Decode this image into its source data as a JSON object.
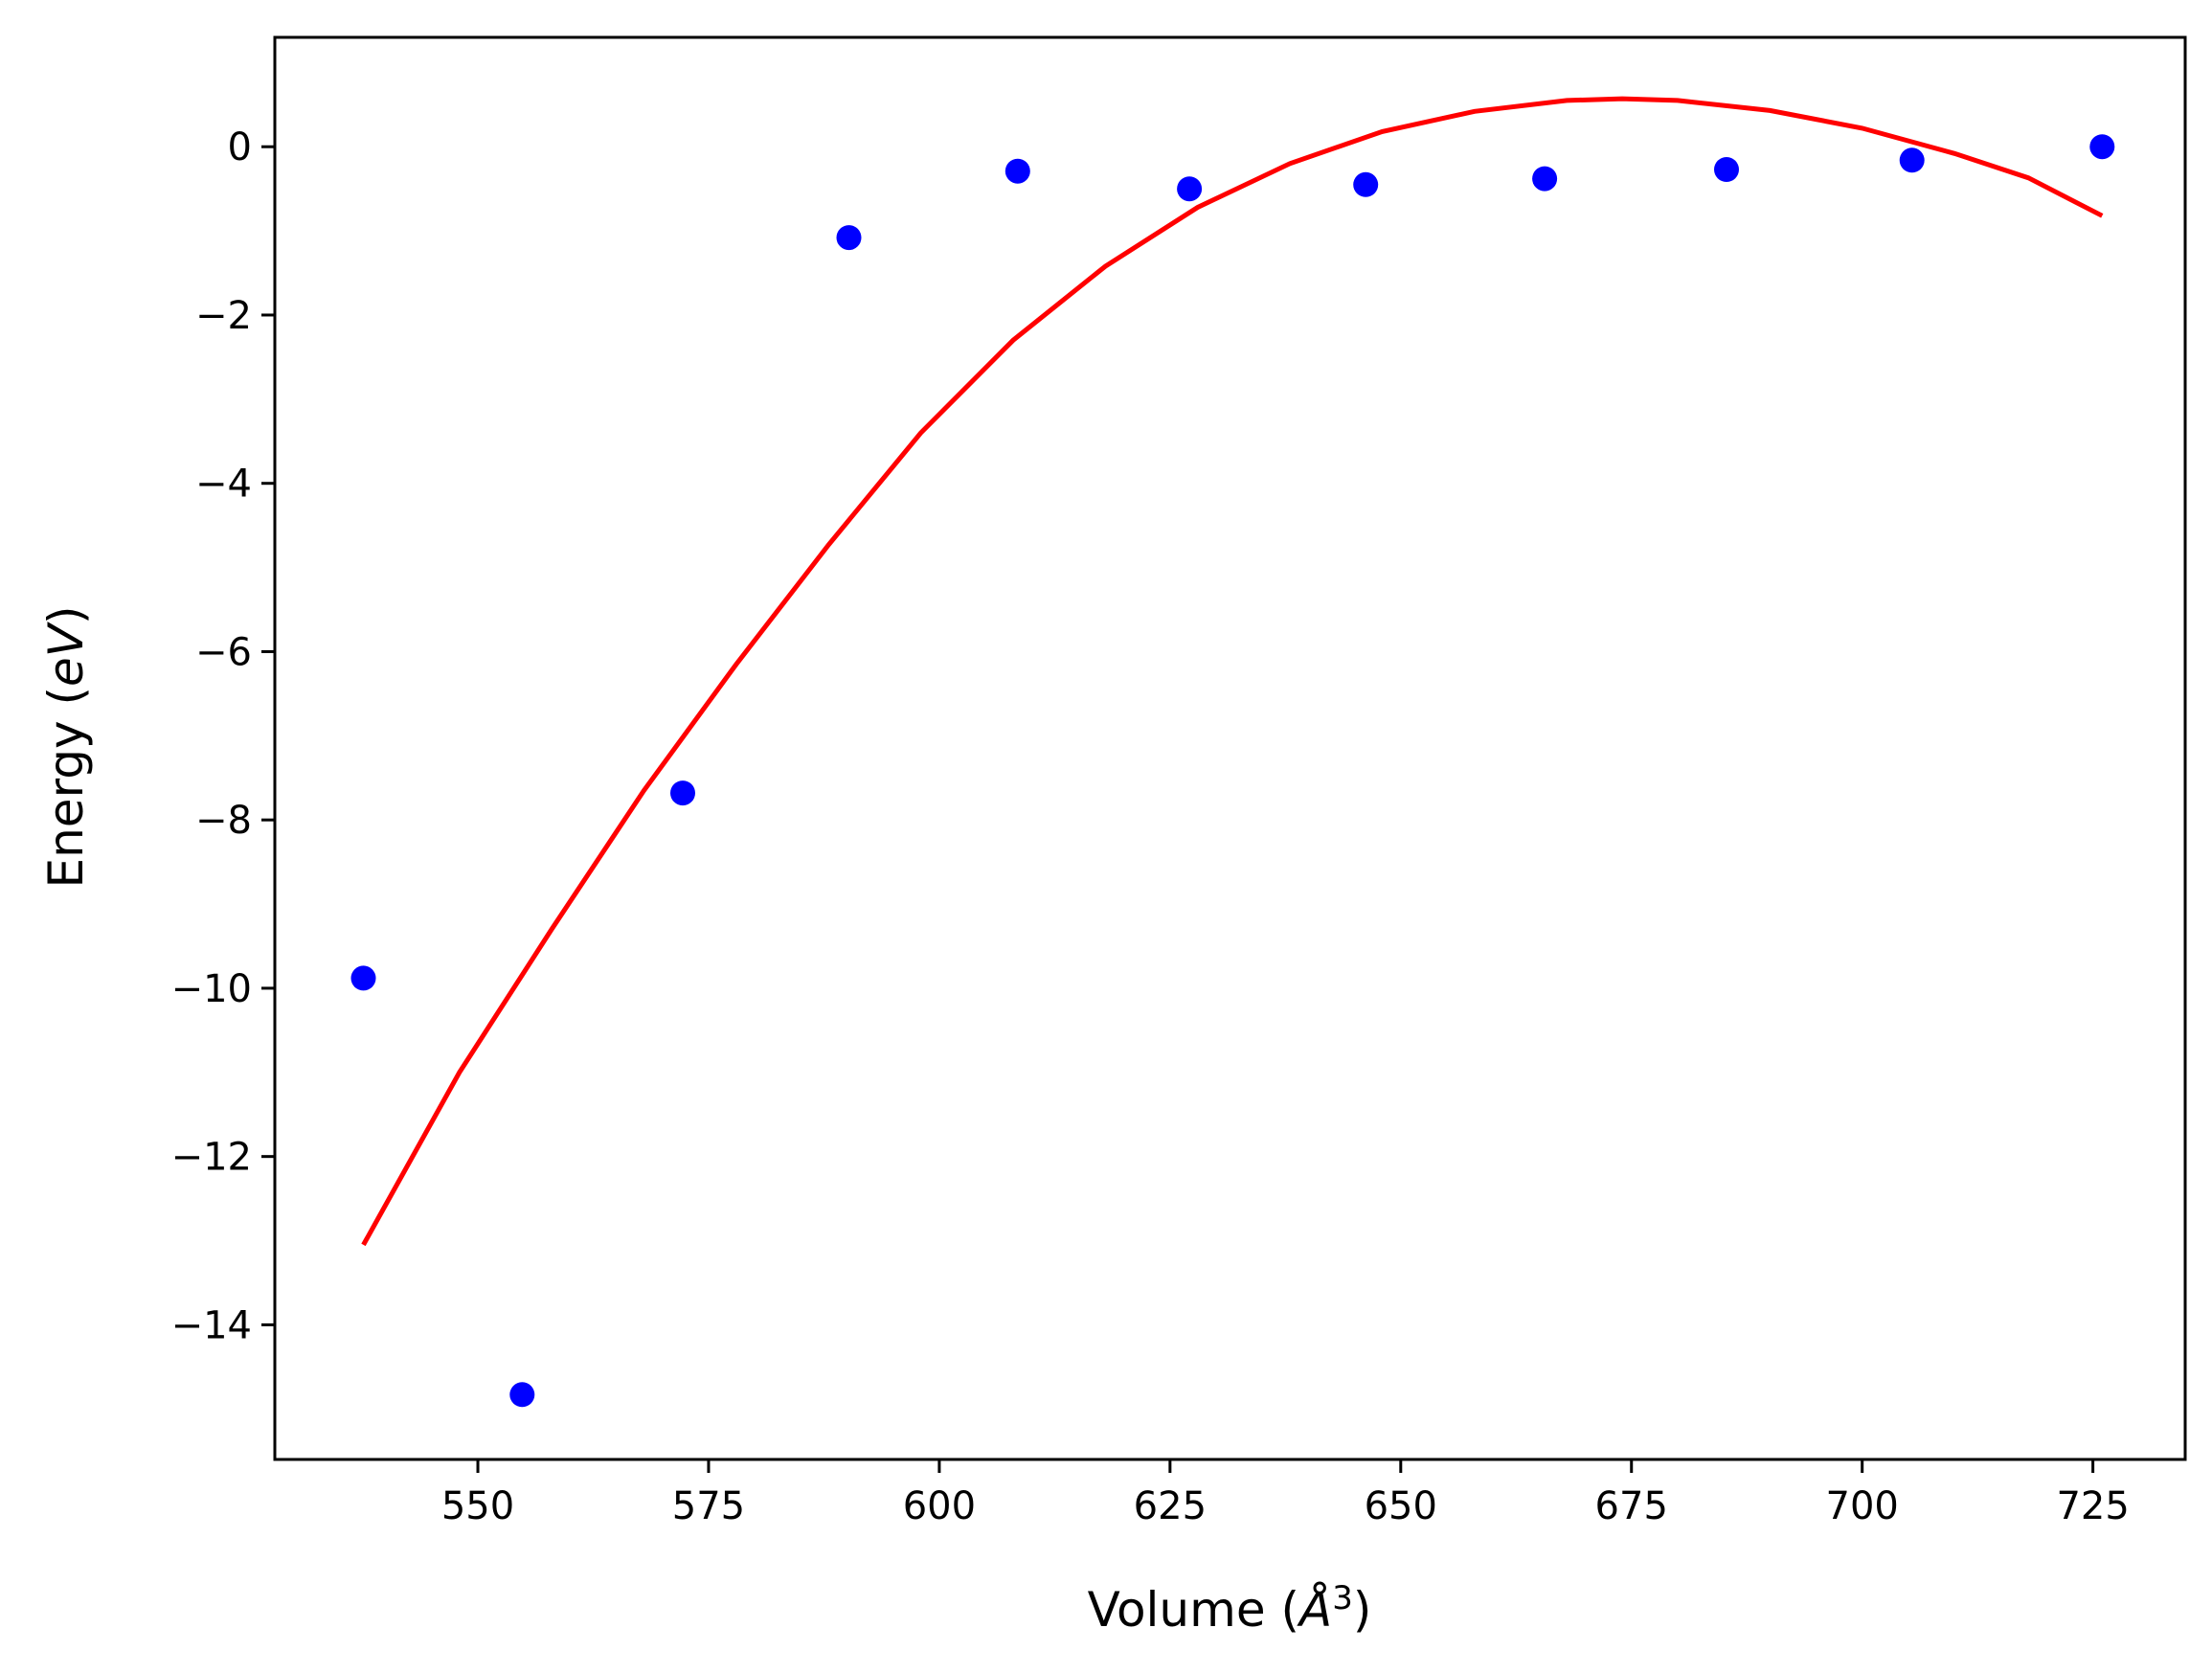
{
  "chart_data": {
    "type": "scatter",
    "title": "",
    "xlabel": "Volume (",
    "xlabel_symbol": "Å",
    "xlabel_power": "3",
    "xlabel_end": ")",
    "ylabel": "Energy (",
    "ylabel_unit": "eV",
    "ylabel_end": ")",
    "xlim": [
      528.0,
      735.0
    ],
    "ylim": [
      -15.6,
      1.3
    ],
    "xticks": [
      550,
      575,
      600,
      625,
      650,
      675,
      700,
      725
    ],
    "xtick_labels": [
      "550",
      "575",
      "600",
      "625",
      "650",
      "675",
      "700",
      "725"
    ],
    "yticks": [
      0,
      -2,
      -4,
      -6,
      -8,
      -10,
      -12,
      -14
    ],
    "ytick_labels": [
      "0",
      "−2",
      "−4",
      "−6",
      "−8",
      "−10",
      "−12",
      "−14"
    ],
    "grid": false,
    "series": [
      {
        "kind": "points",
        "color": "#0000ff",
        "x": [
          537.6,
          554.8,
          572.2,
          590.2,
          608.5,
          627.1,
          646.2,
          665.6,
          685.3,
          705.4,
          726.0
        ],
        "y": [
          -9.88,
          -14.83,
          -7.68,
          -1.08,
          -0.29,
          -0.5,
          -0.45,
          -0.38,
          -0.27,
          -0.16,
          0.0
        ]
      },
      {
        "kind": "fit-curve",
        "color": "#ff0000",
        "x": [
          537.6,
          548.0,
          558.0,
          568.0,
          578.0,
          588.0,
          598.0,
          608.0,
          618.0,
          628.0,
          638.0,
          648.0,
          658.0,
          668.0,
          674.0,
          680.0,
          690.0,
          700.0,
          710.0,
          718.0,
          726.0
        ],
        "y": [
          -13.05,
          -11.0,
          -9.3,
          -7.65,
          -6.15,
          -4.73,
          -3.4,
          -2.3,
          -1.42,
          -0.72,
          -0.2,
          0.18,
          0.42,
          0.55,
          0.57,
          0.55,
          0.43,
          0.22,
          -0.08,
          -0.37,
          -0.82
        ]
      }
    ]
  }
}
